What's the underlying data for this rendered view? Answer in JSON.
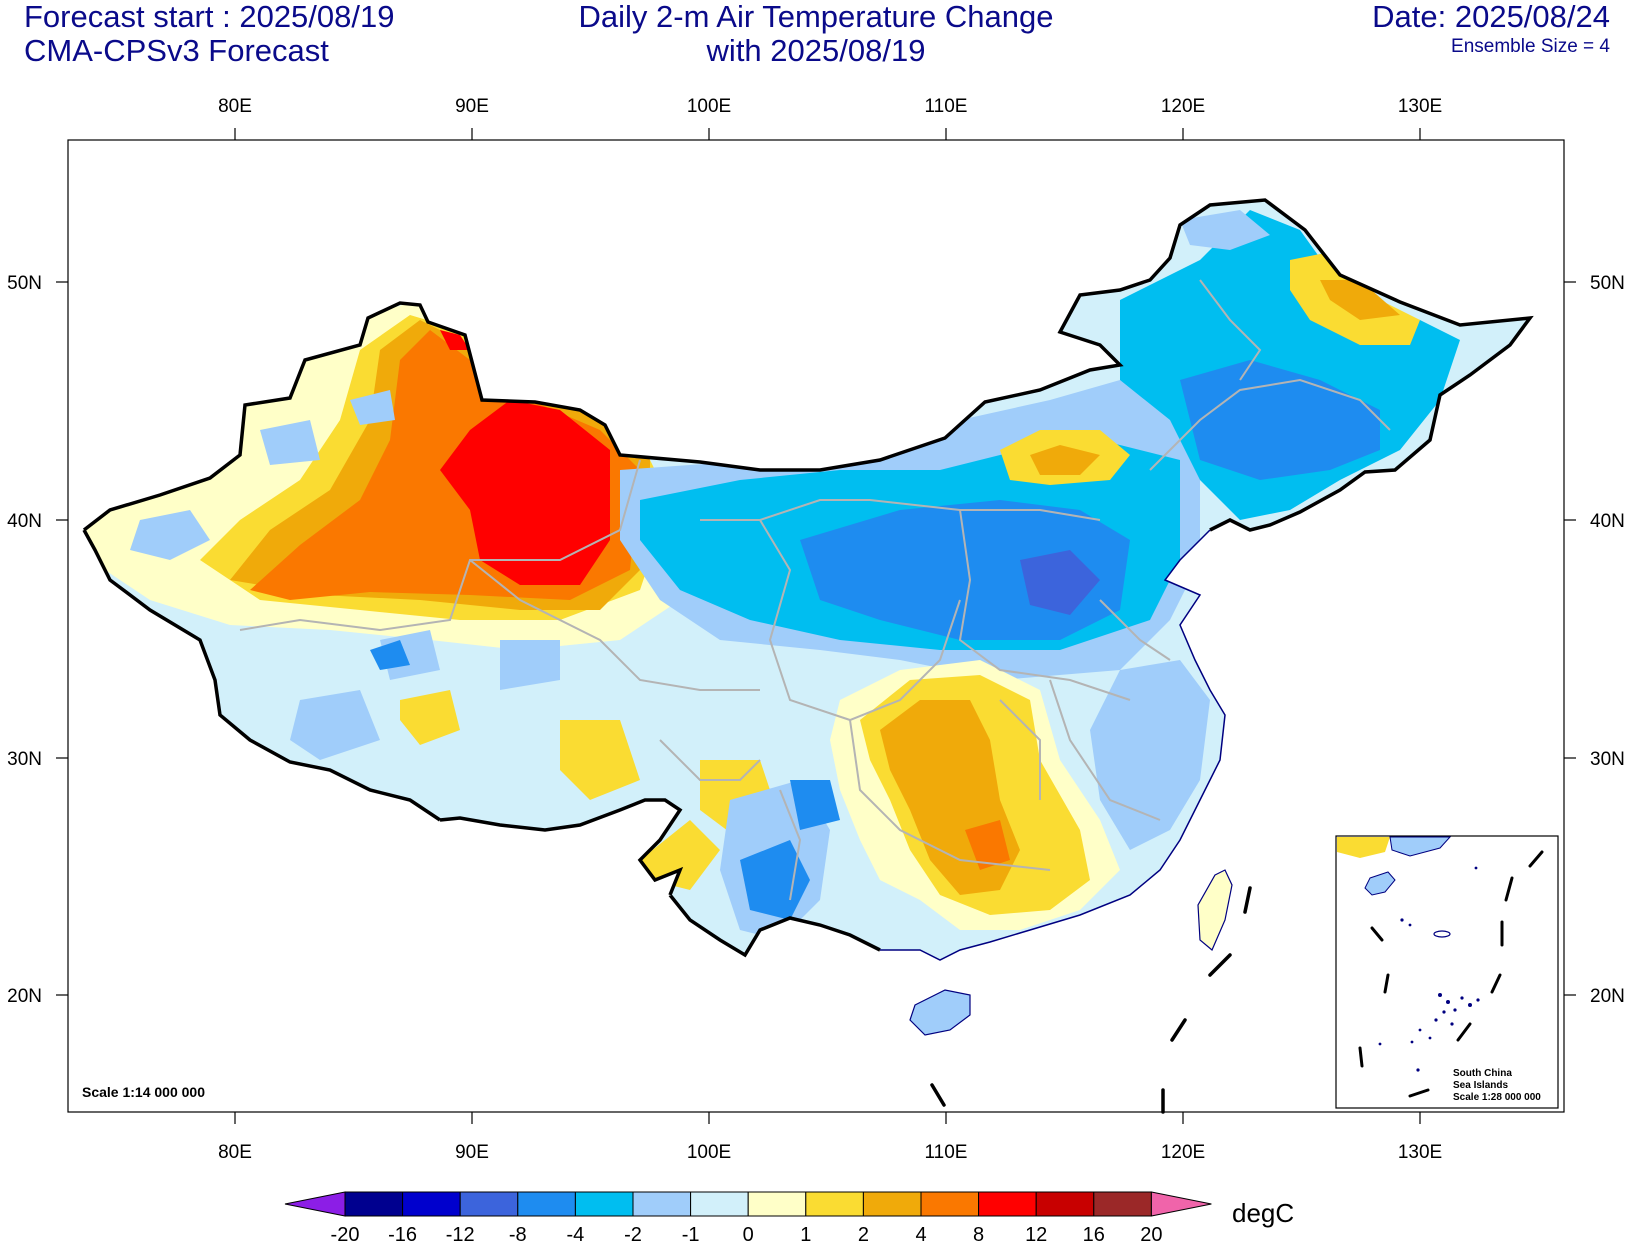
{
  "header": {
    "forecast_start": "Forecast start : 2025/08/19",
    "model": "CMA-CPSv3 Forecast",
    "title_line1": "Daily 2-m Air Temperature Change",
    "title_line2": "with 2025/08/19",
    "valid_date": "Date: 2025/08/24",
    "ensemble": "Ensemble Size = 4"
  },
  "axes": {
    "lon_labels": [
      "80E",
      "90E",
      "100E",
      "110E",
      "120E",
      "130E"
    ],
    "lat_labels": [
      "50N",
      "40N",
      "30N",
      "20N"
    ]
  },
  "colorbar": {
    "labels": [
      "-20",
      "-16",
      "-12",
      "-8",
      "-4",
      "-2",
      "-1",
      "0",
      "1",
      "2",
      "4",
      "8",
      "12",
      "16",
      "20"
    ],
    "colors": [
      "#00008f",
      "#0000cd",
      "#3c64dc",
      "#1e8cf0",
      "#00bef0",
      "#a0cdfa",
      "#d2f0fa",
      "#ffffc8",
      "#fadc32",
      "#f0aa0a",
      "#fa7800",
      "#ff0000",
      "#c80000",
      "#9b2828"
    ],
    "under_color": "#8c1ee6",
    "over_color": "#f064aa",
    "unit": "degC"
  },
  "scale_text": "Scale 1:14 000 000",
  "inset": {
    "line1": "South China",
    "line2": "Sea Islands",
    "line3": "Scale 1:28 000 000"
  }
}
